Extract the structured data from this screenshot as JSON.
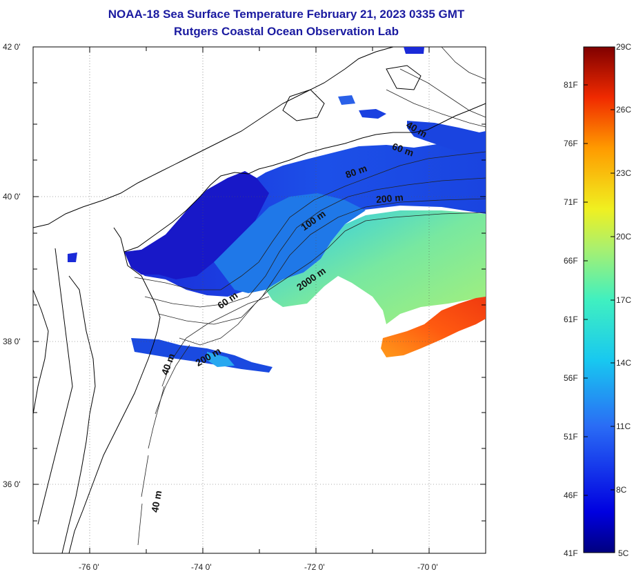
{
  "title": {
    "line1": "NOAA-18 Sea Surface Temperature February 21, 2023 0335 GMT",
    "line2": "Rutgers Coastal Ocean Observation Lab"
  },
  "map": {
    "lat_ticks": [
      "42 0'",
      "40 0'",
      "38 0'",
      "36 0'"
    ],
    "lon_ticks": [
      "-76 0'",
      "-74 0'",
      "-72 0'",
      "-70 0'"
    ],
    "depth_labels": [
      "40 m",
      "60 m",
      "80 m",
      "200 m",
      "100 m",
      "2000 m",
      "60 m",
      "200 m",
      "40 m",
      "40 m"
    ],
    "colors": {
      "land_outline": "#000000",
      "ocean_cold": "#1a2ae0",
      "ocean_warm": "#ff5a1a",
      "ocean_mid": "#7fe07a"
    }
  },
  "colorbar": {
    "fahrenheit": [
      "81F",
      "76F",
      "71F",
      "66F",
      "61F",
      "56F",
      "51F",
      "46F",
      "41F"
    ],
    "celsius": [
      "29C",
      "26C",
      "23C",
      "20C",
      "17C",
      "14C",
      "11C",
      "8C",
      "5C"
    ]
  }
}
